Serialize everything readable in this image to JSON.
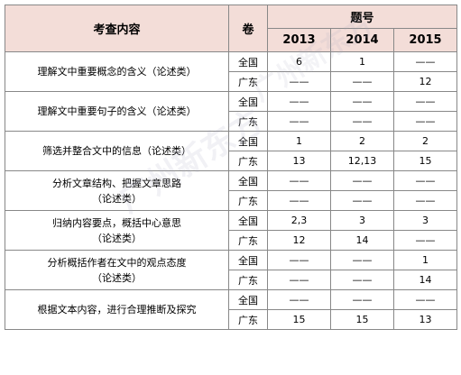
{
  "header": {
    "content": "考查内容",
    "juan": "卷",
    "tihao": "题号",
    "years": [
      "2013",
      "2014",
      "2015"
    ]
  },
  "watermark": "广州新东方",
  "rows": [
    {
      "content": [
        "理解文中重要概念的含义（论述类）"
      ],
      "regions": [
        {
          "name": "全国",
          "values": [
            "6",
            "1",
            "——"
          ]
        },
        {
          "name": "广东",
          "values": [
            "——",
            "——",
            "12"
          ]
        }
      ]
    },
    {
      "content": [
        "理解文中重要句子的含义（论述类）"
      ],
      "regions": [
        {
          "name": "全国",
          "values": [
            "——",
            "——",
            "——"
          ]
        },
        {
          "name": "广东",
          "values": [
            "——",
            "——",
            "——"
          ]
        }
      ]
    },
    {
      "content": [
        "筛选并整合文中的信息（论述类）"
      ],
      "regions": [
        {
          "name": "全国",
          "values": [
            "1",
            "2",
            "2"
          ]
        },
        {
          "name": "广东",
          "values": [
            "13",
            "12,13",
            "15"
          ]
        }
      ]
    },
    {
      "content": [
        "分析文章结构、把握文章思路",
        "（论述类）"
      ],
      "regions": [
        {
          "name": "全国",
          "values": [
            "——",
            "——",
            "——"
          ]
        },
        {
          "name": "广东",
          "values": [
            "——",
            "——",
            "——"
          ]
        }
      ]
    },
    {
      "content": [
        "归纳内容要点，概括中心意思",
        "（论述类）"
      ],
      "regions": [
        {
          "name": "全国",
          "values": [
            "2,3",
            "3",
            "3"
          ]
        },
        {
          "name": "广东",
          "values": [
            "12",
            "14",
            "——"
          ]
        }
      ]
    },
    {
      "content": [
        "分析概括作者在文中的观点态度",
        "（论述类）"
      ],
      "regions": [
        {
          "name": "全国",
          "values": [
            "——",
            "——",
            "1"
          ]
        },
        {
          "name": "广东",
          "values": [
            "——",
            "——",
            "14"
          ]
        }
      ]
    },
    {
      "content": [
        "根据文本内容，进行合理推断及探究"
      ],
      "regions": [
        {
          "name": "全国",
          "values": [
            "——",
            "——",
            "——"
          ]
        },
        {
          "name": "广东",
          "values": [
            "15",
            "15",
            "13"
          ]
        }
      ]
    }
  ]
}
